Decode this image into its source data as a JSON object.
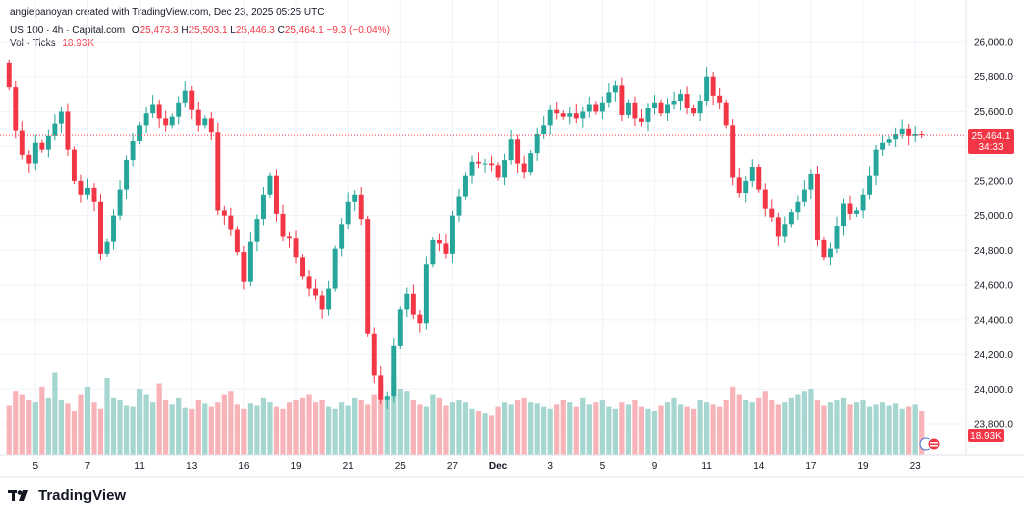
{
  "header": {
    "credit": "angiepanoyan created with TradingView.com, Dec 23, 2025 05:25 UTC",
    "symbol": "US 100 · 4h · Capital.com",
    "open_label": "O",
    "open": "25,473.3",
    "high_label": "H",
    "high": "25,503.1",
    "low_label": "L",
    "low": "25,446.3",
    "close_label": "C",
    "close": "25,464.1",
    "change": "−9.3 (−0.04%)",
    "vol_label": "Vol · Ticks",
    "vol_value": "18.93K"
  },
  "price_badge": {
    "price": "25,464.1",
    "countdown": "34:33"
  },
  "volume_badge": "18.93K",
  "brand": "TradingView",
  "colors": {
    "up": "#26a69a",
    "down": "#f23645",
    "vol_up": "#a5d6d0",
    "vol_down": "#f7b3b8"
  },
  "chart_data": {
    "type": "candlestick",
    "title": "US 100 · 4h · Capital.com",
    "ylim": [
      23700,
      26100
    ],
    "y_ticks": [
      26000,
      25800,
      25600,
      25400,
      25200,
      25000,
      24800,
      24600,
      24400,
      24200,
      24000,
      23800
    ],
    "y_tick_labels": [
      "26,000.0",
      "25,800.0",
      "25,600.0",
      "25,400.0",
      "25,200.0",
      "25,000.0",
      "24,800.0",
      "24,600.0",
      "24,400.0",
      "24,200.0",
      "24,000.0",
      "23,800.0"
    ],
    "x_tick_labels": [
      {
        "label": "5",
        "bar": 4
      },
      {
        "label": "7",
        "bar": 12
      },
      {
        "label": "11",
        "bar": 20
      },
      {
        "label": "13",
        "bar": 28
      },
      {
        "label": "16",
        "bar": 36
      },
      {
        "label": "19",
        "bar": 44
      },
      {
        "label": "21",
        "bar": 52
      },
      {
        "label": "25",
        "bar": 60
      },
      {
        "label": "27",
        "bar": 68
      },
      {
        "label": "Dec",
        "bar": 75
      },
      {
        "label": "3",
        "bar": 83
      },
      {
        "label": "5",
        "bar": 91
      },
      {
        "label": "9",
        "bar": 99
      },
      {
        "label": "11",
        "bar": 107
      },
      {
        "label": "14",
        "bar": 115
      },
      {
        "label": "17",
        "bar": 123
      },
      {
        "label": "19",
        "bar": 131
      },
      {
        "label": "23",
        "bar": 139
      }
    ],
    "bar_count": 141,
    "close": [
      25740,
      25490,
      25350,
      25300,
      25420,
      25380,
      25460,
      25530,
      25600,
      25380,
      25200,
      25120,
      25160,
      25080,
      24780,
      24850,
      25000,
      25150,
      25320,
      25430,
      25520,
      25590,
      25640,
      25560,
      25520,
      25570,
      25650,
      25720,
      25610,
      25520,
      25560,
      25480,
      25030,
      25000,
      24920,
      24790,
      24620,
      24850,
      24980,
      25120,
      25230,
      25010,
      24880,
      24870,
      24760,
      24650,
      24580,
      24540,
      24460,
      24580,
      24810,
      24950,
      25080,
      25120,
      24980,
      24320,
      24080,
      23940,
      23960,
      24250,
      24460,
      24550,
      24430,
      24380,
      24720,
      24860,
      24840,
      24780,
      25000,
      25110,
      25230,
      25310,
      25300,
      25300,
      25290,
      25220,
      25320,
      25440,
      25300,
      25250,
      25360,
      25470,
      25520,
      25610,
      25590,
      25570,
      25590,
      25560,
      25600,
      25640,
      25600,
      25650,
      25710,
      25750,
      25580,
      25650,
      25560,
      25540,
      25620,
      25650,
      25590,
      25640,
      25660,
      25700,
      25620,
      25590,
      25660,
      25800,
      25690,
      25650,
      25520,
      25220,
      25130,
      25200,
      25280,
      25150,
      25040,
      24990,
      24880,
      24950,
      25020,
      25080,
      25150,
      25240,
      24860,
      24760,
      24810,
      24940,
      25070,
      25010,
      25030,
      25120,
      25230,
      25380,
      25420,
      25440,
      25470,
      25500,
      25460,
      25470,
      25464
    ],
    "volume_scale": [
      0.45,
      0.58,
      0.55,
      0.5,
      0.48,
      0.62,
      0.52,
      0.75,
      0.5,
      0.47,
      0.4,
      0.55,
      0.62,
      0.48,
      0.42,
      0.7,
      0.52,
      0.5,
      0.45,
      0.44,
      0.6,
      0.55,
      0.48,
      0.65,
      0.5,
      0.46,
      0.52,
      0.43,
      0.42,
      0.5,
      0.47,
      0.44,
      0.48,
      0.55,
      0.58,
      0.46,
      0.42,
      0.47,
      0.45,
      0.52,
      0.48,
      0.44,
      0.42,
      0.48,
      0.5,
      0.52,
      0.55,
      0.48,
      0.5,
      0.44,
      0.42,
      0.48,
      0.45,
      0.52,
      0.5,
      0.46,
      0.55,
      0.65,
      0.52,
      0.7,
      0.6,
      0.58,
      0.5,
      0.46,
      0.44,
      0.55,
      0.52,
      0.45,
      0.48,
      0.5,
      0.48,
      0.42,
      0.4,
      0.38,
      0.36,
      0.44,
      0.48,
      0.46,
      0.5,
      0.52,
      0.48,
      0.47,
      0.44,
      0.42,
      0.46,
      0.5,
      0.48,
      0.44,
      0.52,
      0.46,
      0.48,
      0.5,
      0.44,
      0.42,
      0.48,
      0.46,
      0.5,
      0.44,
      0.42,
      0.4,
      0.45,
      0.48,
      0.52,
      0.46,
      0.44,
      0.42,
      0.5,
      0.48,
      0.46,
      0.44,
      0.5,
      0.62,
      0.55,
      0.5,
      0.48,
      0.52,
      0.58,
      0.5,
      0.46,
      0.48,
      0.52,
      0.55,
      0.58,
      0.6,
      0.5,
      0.45,
      0.48,
      0.5,
      0.52,
      0.46,
      0.48,
      0.5,
      0.44,
      0.46,
      0.48,
      0.45,
      0.47,
      0.42,
      0.44,
      0.46,
      0.4
    ]
  }
}
